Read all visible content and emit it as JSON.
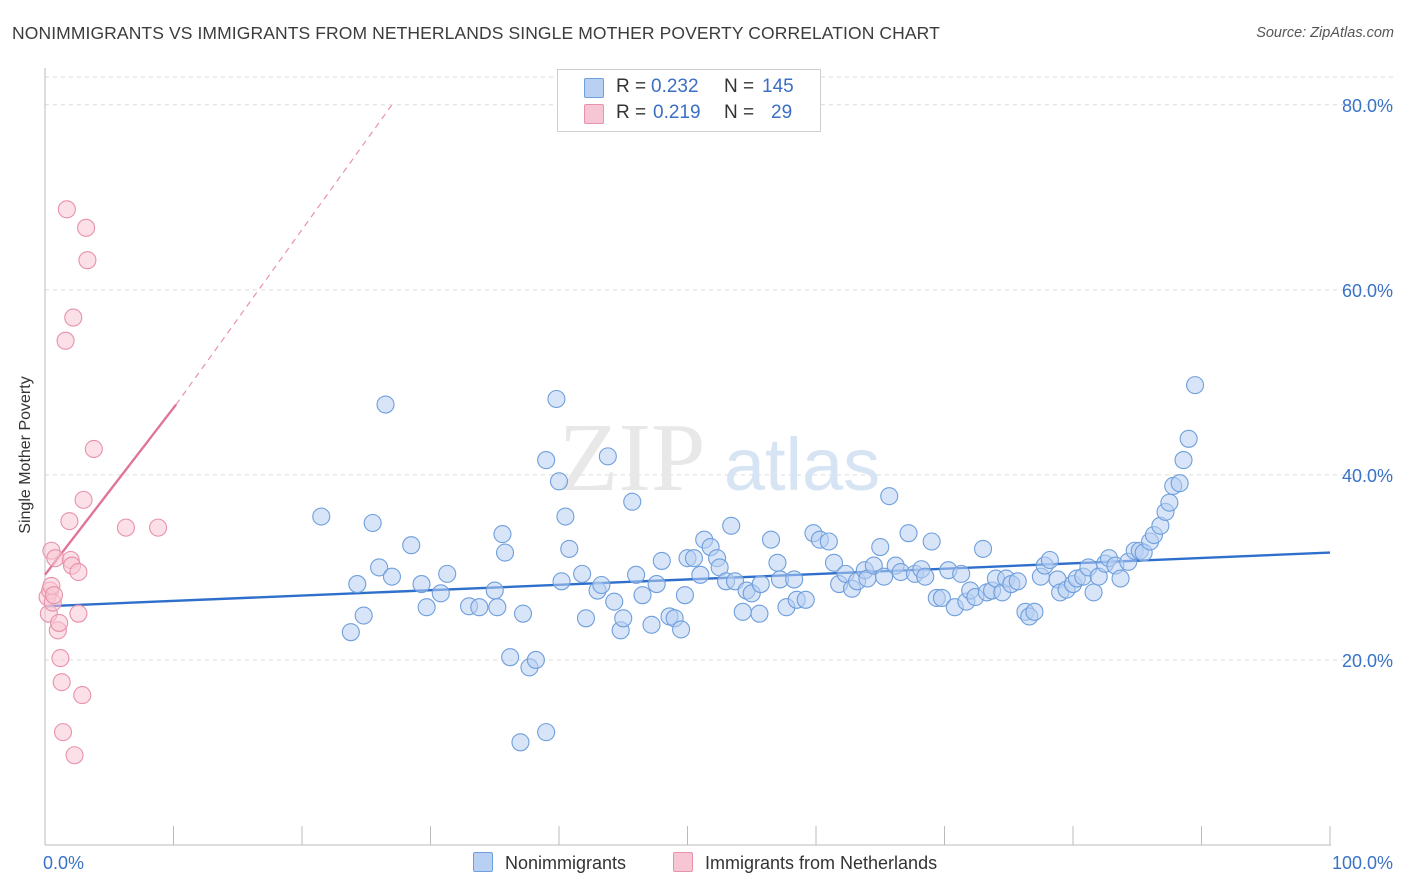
{
  "title": "NONIMMIGRANTS VS IMMIGRANTS FROM NETHERLANDS SINGLE MOTHER POVERTY CORRELATION CHART",
  "source": "Source: ZipAtlas.com",
  "watermark": {
    "zip": "ZIP",
    "atlas": "atlas"
  },
  "colors": {
    "blue_fill": "#b8d0f2",
    "blue_stroke": "#6f9fdc",
    "blue_line": "#2f6fcc",
    "pink_fill": "#f7c6d4",
    "pink_stroke": "#e891ab",
    "pink_line": "#e07599",
    "tick_label": "#3a72c6",
    "grid": "#dcdcdc"
  },
  "legend": {
    "series1": {
      "r_label": "R =",
      "r_value": "0.232",
      "n_label": "N =",
      "n_value": "145"
    },
    "series2": {
      "r_label": "R =",
      "r_value": "0.219",
      "n_label": "N =",
      "n_value": "29"
    }
  },
  "chart_data": {
    "type": "scatter",
    "title": "NONIMMIGRANTS VS IMMIGRANTS FROM NETHERLANDS SINGLE MOTHER POVERTY CORRELATION CHART",
    "xlabel": "",
    "ylabel": "Single Mother Poverty",
    "xlim": [
      0,
      100
    ],
    "ylim": [
      0,
      83
    ],
    "x_tick_labels": [
      "0.0%",
      "100.0%"
    ],
    "y_ticks": [
      20,
      40,
      60,
      80
    ],
    "y_tick_labels": [
      "20.0%",
      "40.0%",
      "60.0%",
      "80.0%"
    ],
    "x_minor_ticks": [
      0,
      10,
      20,
      30,
      40,
      50,
      60,
      70,
      80,
      90,
      100
    ],
    "series": [
      {
        "name": "Nonimmigrants",
        "trend": {
          "x": [
            0,
            100
          ],
          "y": [
            25.8,
            31.6
          ]
        },
        "points": [
          [
            21.5,
            35.5
          ],
          [
            23.8,
            23.0
          ],
          [
            24.3,
            28.2
          ],
          [
            24.8,
            24.8
          ],
          [
            25.5,
            34.8
          ],
          [
            26.0,
            30.0
          ],
          [
            26.5,
            47.6
          ],
          [
            27.0,
            29.0
          ],
          [
            28.5,
            32.4
          ],
          [
            29.3,
            28.2
          ],
          [
            29.7,
            25.7
          ],
          [
            30.8,
            27.2
          ],
          [
            31.3,
            29.3
          ],
          [
            33.0,
            25.8
          ],
          [
            33.8,
            25.7
          ],
          [
            35.0,
            27.5
          ],
          [
            35.2,
            25.7
          ],
          [
            35.6,
            33.6
          ],
          [
            35.8,
            31.6
          ],
          [
            36.2,
            20.3
          ],
          [
            37.2,
            25.0
          ],
          [
            37.7,
            19.2
          ],
          [
            38.2,
            20.0
          ],
          [
            37.0,
            11.1
          ],
          [
            39.0,
            12.2
          ],
          [
            39.0,
            41.6
          ],
          [
            39.8,
            48.2
          ],
          [
            40.2,
            28.5
          ],
          [
            40.5,
            35.5
          ],
          [
            40.8,
            32.0
          ],
          [
            41.8,
            29.3
          ],
          [
            42.1,
            24.5
          ],
          [
            43.0,
            27.5
          ],
          [
            43.3,
            28.1
          ],
          [
            43.8,
            42.0
          ],
          [
            44.3,
            26.3
          ],
          [
            44.8,
            23.2
          ],
          [
            45.0,
            24.5
          ],
          [
            45.7,
            37.1
          ],
          [
            46.0,
            29.2
          ],
          [
            46.5,
            27.0
          ],
          [
            47.2,
            23.8
          ],
          [
            47.6,
            28.2
          ],
          [
            48.0,
            30.7
          ],
          [
            48.6,
            24.7
          ],
          [
            49.0,
            24.5
          ],
          [
            49.5,
            23.3
          ],
          [
            49.8,
            27.0
          ],
          [
            50.0,
            31.0
          ],
          [
            50.5,
            31.0
          ],
          [
            51.0,
            29.2
          ],
          [
            51.3,
            33.0
          ],
          [
            51.8,
            32.2
          ],
          [
            52.3,
            31.0
          ],
          [
            52.5,
            30.0
          ],
          [
            53.0,
            28.5
          ],
          [
            53.4,
            34.5
          ],
          [
            53.7,
            28.5
          ],
          [
            54.3,
            25.2
          ],
          [
            54.6,
            27.5
          ],
          [
            55.0,
            27.2
          ],
          [
            55.6,
            25.0
          ],
          [
            55.7,
            28.2
          ],
          [
            56.5,
            33.0
          ],
          [
            57.0,
            30.5
          ],
          [
            57.2,
            28.7
          ],
          [
            57.7,
            25.7
          ],
          [
            58.3,
            28.7
          ],
          [
            58.5,
            26.5
          ],
          [
            59.2,
            26.5
          ],
          [
            59.8,
            33.7
          ],
          [
            60.3,
            33.0
          ],
          [
            61.0,
            32.8
          ],
          [
            61.4,
            30.5
          ],
          [
            61.8,
            28.2
          ],
          [
            62.3,
            29.3
          ],
          [
            62.8,
            27.7
          ],
          [
            63.2,
            28.5
          ],
          [
            63.8,
            29.7
          ],
          [
            64.0,
            28.8
          ],
          [
            64.5,
            30.2
          ],
          [
            65.0,
            32.2
          ],
          [
            65.3,
            29.0
          ],
          [
            65.7,
            37.7
          ],
          [
            66.2,
            30.2
          ],
          [
            66.6,
            29.5
          ],
          [
            67.2,
            33.7
          ],
          [
            67.7,
            29.3
          ],
          [
            68.2,
            29.8
          ],
          [
            68.5,
            29.0
          ],
          [
            69.0,
            32.8
          ],
          [
            69.4,
            26.7
          ],
          [
            69.8,
            26.7
          ],
          [
            70.3,
            29.7
          ],
          [
            70.8,
            25.7
          ],
          [
            71.3,
            29.3
          ],
          [
            71.7,
            26.3
          ],
          [
            72.0,
            27.5
          ],
          [
            72.4,
            26.8
          ],
          [
            73.0,
            32.0
          ],
          [
            73.3,
            27.3
          ],
          [
            73.7,
            27.5
          ],
          [
            74.0,
            28.8
          ],
          [
            74.5,
            27.3
          ],
          [
            74.8,
            28.8
          ],
          [
            75.2,
            28.2
          ],
          [
            75.7,
            28.5
          ],
          [
            76.3,
            25.2
          ],
          [
            76.6,
            24.7
          ],
          [
            77.0,
            25.2
          ],
          [
            77.5,
            29.0
          ],
          [
            77.8,
            30.2
          ],
          [
            78.2,
            30.8
          ],
          [
            78.8,
            28.7
          ],
          [
            79.0,
            27.3
          ],
          [
            79.5,
            27.6
          ],
          [
            80.0,
            28.2
          ],
          [
            80.3,
            28.8
          ],
          [
            80.8,
            29.0
          ],
          [
            81.2,
            30.0
          ],
          [
            81.6,
            27.3
          ],
          [
            82.0,
            29.0
          ],
          [
            82.5,
            30.4
          ],
          [
            82.8,
            31.0
          ],
          [
            83.3,
            30.2
          ],
          [
            83.7,
            28.8
          ],
          [
            84.3,
            30.6
          ],
          [
            84.8,
            31.8
          ],
          [
            85.2,
            31.8
          ],
          [
            85.5,
            31.6
          ],
          [
            86.0,
            32.8
          ],
          [
            86.3,
            33.5
          ],
          [
            86.8,
            34.5
          ],
          [
            87.2,
            36.0
          ],
          [
            87.5,
            37.0
          ],
          [
            87.8,
            38.8
          ],
          [
            88.3,
            39.1
          ],
          [
            88.6,
            41.6
          ],
          [
            89.0,
            43.9
          ],
          [
            89.5,
            49.7
          ],
          [
            40.0,
            39.3
          ]
        ]
      },
      {
        "name": "Immigrants from Netherlands",
        "trend": {
          "x": [
            0,
            10.2
          ],
          "y": [
            29.2,
            47.6
          ],
          "dashed_extension": {
            "x": [
              10.2,
              27.0
            ],
            "y": [
              47.6,
              80.0
            ]
          }
        },
        "points": [
          [
            0.2,
            26.8
          ],
          [
            0.3,
            25.0
          ],
          [
            0.4,
            27.5
          ],
          [
            0.5,
            28.0
          ],
          [
            0.5,
            31.8
          ],
          [
            0.6,
            26.2
          ],
          [
            0.7,
            27.0
          ],
          [
            0.8,
            31.0
          ],
          [
            1.0,
            23.2
          ],
          [
            1.1,
            24.0
          ],
          [
            1.2,
            20.2
          ],
          [
            1.3,
            17.6
          ],
          [
            1.4,
            12.2
          ],
          [
            1.6,
            54.5
          ],
          [
            1.7,
            68.7
          ],
          [
            1.9,
            35.0
          ],
          [
            2.0,
            30.8
          ],
          [
            2.1,
            30.2
          ],
          [
            2.2,
            57.0
          ],
          [
            2.3,
            9.7
          ],
          [
            2.6,
            29.5
          ],
          [
            2.6,
            25.0
          ],
          [
            2.9,
            16.2
          ],
          [
            3.0,
            37.3
          ],
          [
            3.2,
            66.7
          ],
          [
            3.3,
            63.2
          ],
          [
            3.8,
            42.8
          ],
          [
            6.3,
            34.3
          ],
          [
            8.8,
            34.3
          ]
        ]
      }
    ],
    "legend": [
      "Nonimmigrants",
      "Immigrants from Netherlands"
    ],
    "grid": true
  }
}
